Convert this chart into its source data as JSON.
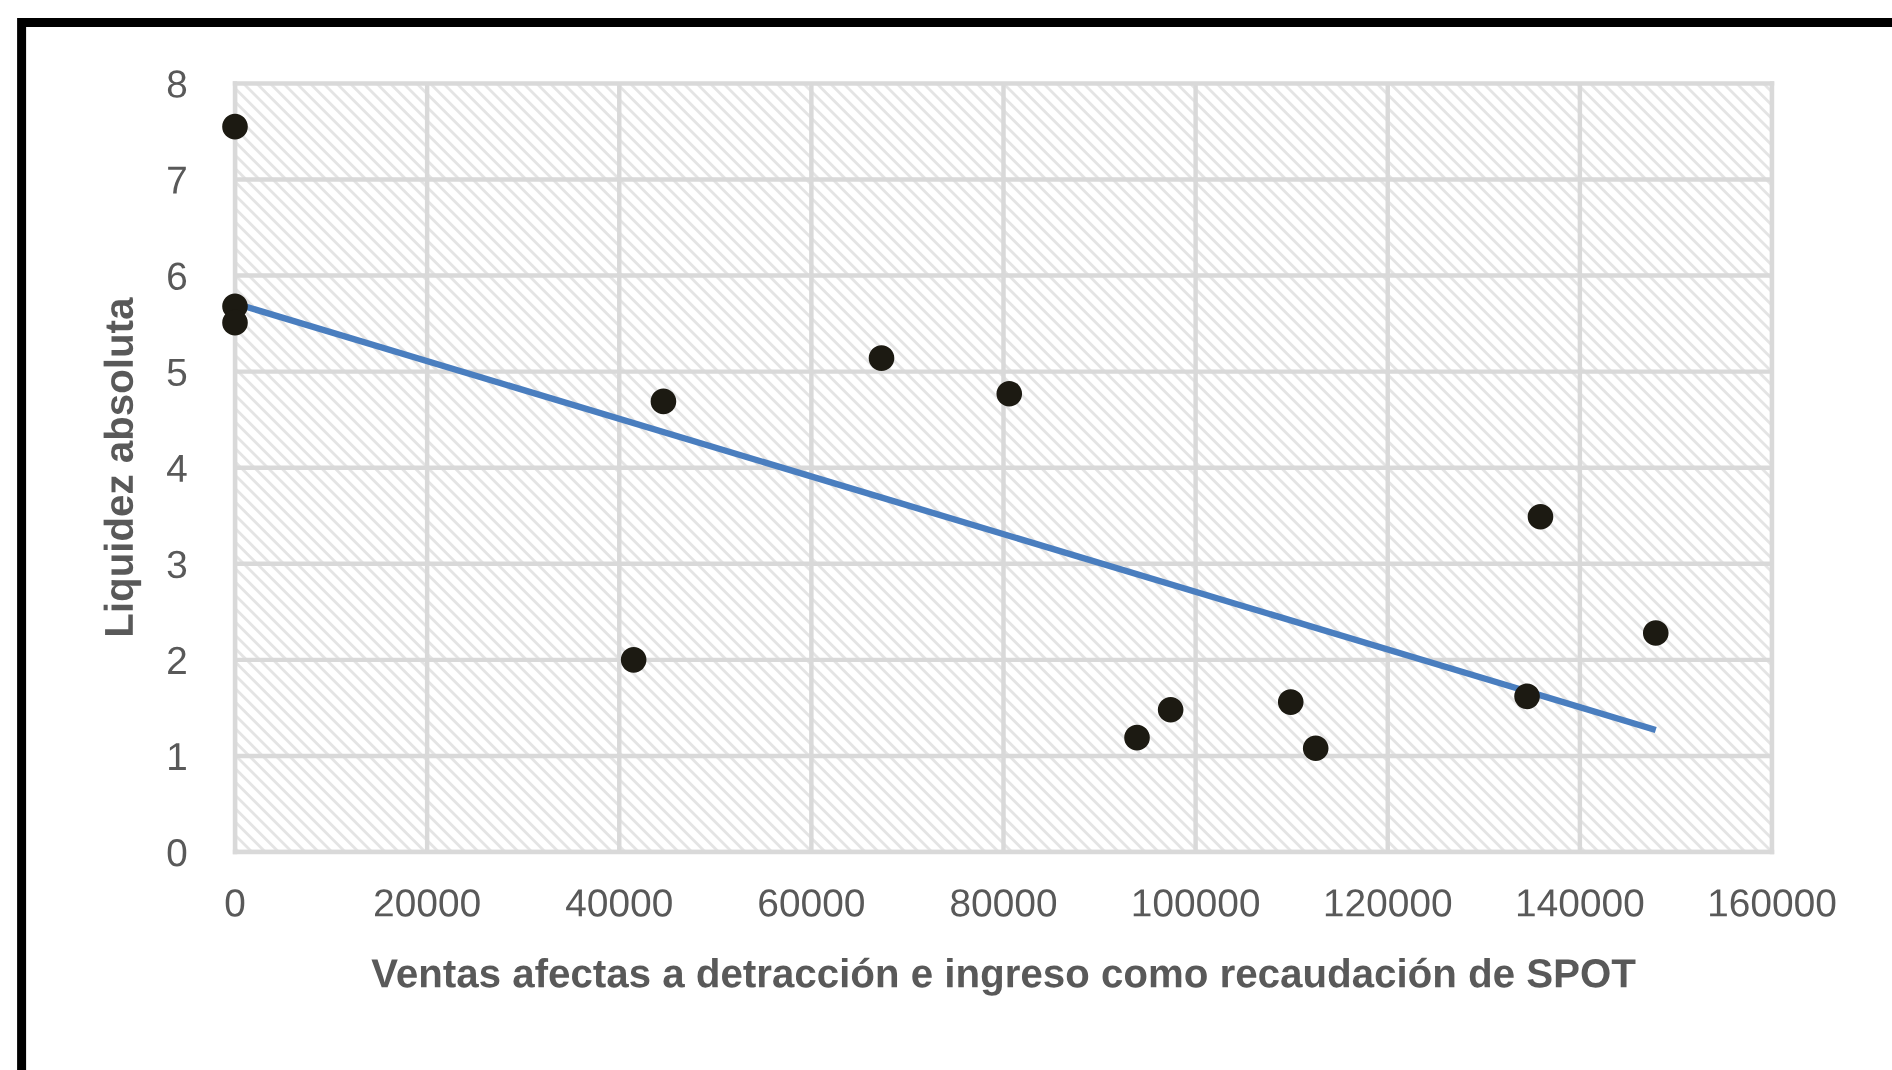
{
  "chart_data": {
    "type": "scatter",
    "xlabel": "Ventas afectas a detracción e ingreso como recaudación de SPOT",
    "ylabel": "Liquidez absoluta",
    "xlim": [
      0,
      160000
    ],
    "xticks": [
      0,
      20000,
      40000,
      60000,
      80000,
      100000,
      120000,
      140000,
      160000
    ],
    "ylim": [
      0,
      8
    ],
    "yticks": [
      0,
      1,
      2,
      3,
      4,
      5,
      6,
      7,
      8
    ],
    "grid": true,
    "marker": "circle",
    "series": [
      {
        "color": "#1c1a12",
        "x": [
          0,
          0,
          0,
          44600,
          41500,
          67300,
          80600,
          93900,
          97400,
          109900,
          112500,
          135900,
          134500,
          147900
        ],
        "values": [
          7.55,
          5.68,
          5.51,
          4.69,
          2.0,
          5.14,
          4.77,
          1.19,
          1.48,
          1.56,
          1.08,
          3.49,
          1.62,
          2.28
        ]
      },
      {
        "type": "line",
        "color": "#4a7ebf",
        "marker": "none",
        "line_style": "solid",
        "x": [
          0,
          147900
        ],
        "values": [
          5.71,
          1.27
        ]
      }
    ]
  }
}
